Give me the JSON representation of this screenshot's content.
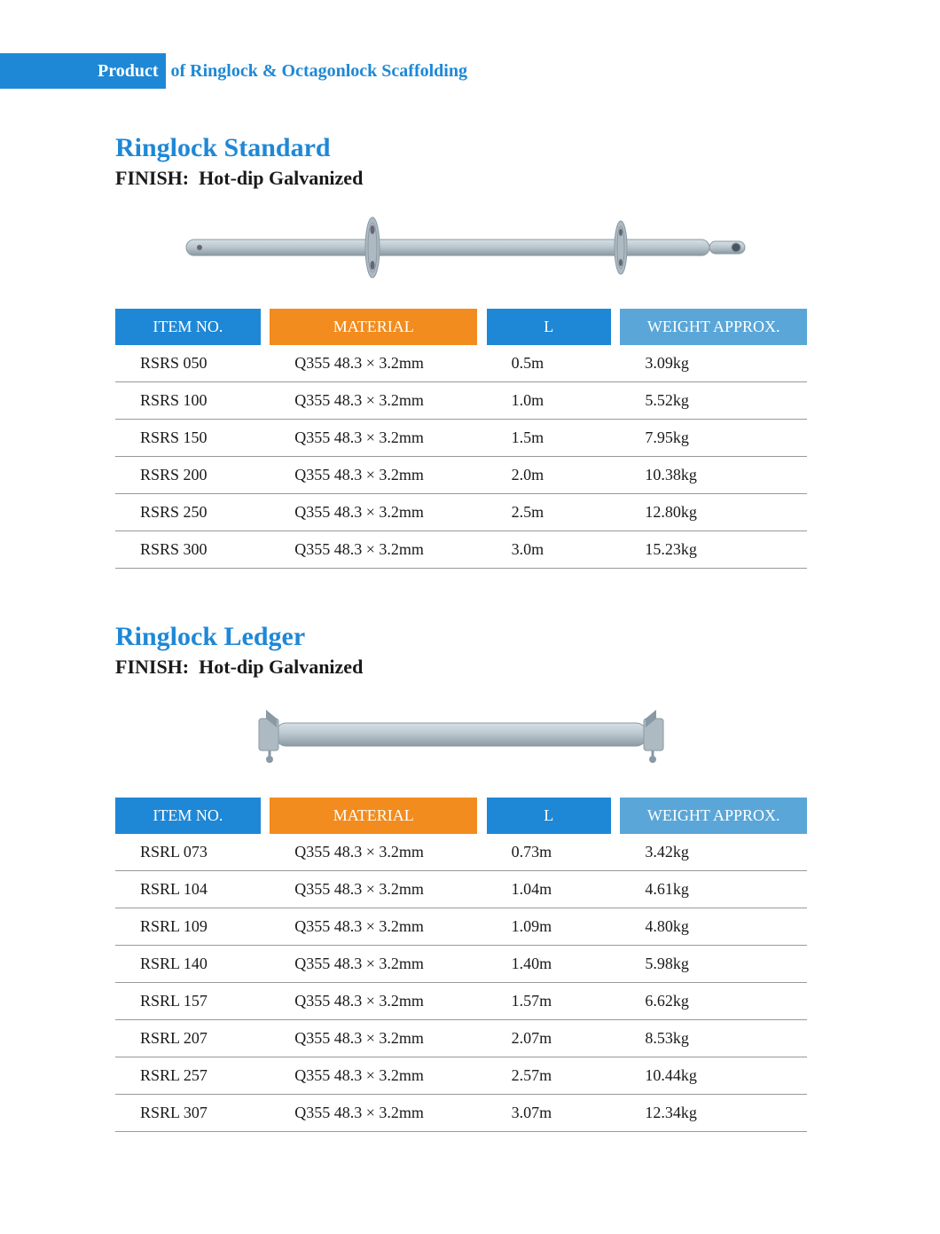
{
  "banner": {
    "left_text": "Product",
    "right_text": "of  Ringlock & Octagonlock Scaffolding",
    "left_bg": "#1e88d6",
    "left_color": "#ffffff",
    "right_color": "#1e88d6"
  },
  "table_header_colors": {
    "col1": "#1e88d6",
    "col2": "#f28c1e",
    "col3": "#1e88d6",
    "col4": "#5aa6d8"
  },
  "columns": [
    "ITEM NO.",
    "MATERIAL",
    "L",
    "WEIGHT APPROX."
  ],
  "sections": [
    {
      "title": "Ringlock Standard",
      "finish_label": "FINISH:",
      "finish_value": "Hot-dip Galvanized",
      "illustration": "standard",
      "rows": [
        {
          "item": "RSRS 050",
          "material": "Q355  48.3 × 3.2mm",
          "l": "0.5m",
          "weight": "3.09kg"
        },
        {
          "item": "RSRS 100",
          "material": "Q355  48.3 × 3.2mm",
          "l": "1.0m",
          "weight": "5.52kg"
        },
        {
          "item": "RSRS 150",
          "material": "Q355  48.3 × 3.2mm",
          "l": "1.5m",
          "weight": "7.95kg"
        },
        {
          "item": "RSRS 200",
          "material": "Q355  48.3 × 3.2mm",
          "l": "2.0m",
          "weight": "10.38kg"
        },
        {
          "item": "RSRS 250",
          "material": "Q355  48.3 × 3.2mm",
          "l": "2.5m",
          "weight": "12.80kg"
        },
        {
          "item": "RSRS 300",
          "material": "Q355  48.3 × 3.2mm",
          "l": "3.0m",
          "weight": "15.23kg"
        }
      ]
    },
    {
      "title": "Ringlock Ledger",
      "finish_label": "FINISH:",
      "finish_value": "Hot-dip Galvanized",
      "illustration": "ledger",
      "rows": [
        {
          "item": "RSRL 073",
          "material": "Q355  48.3 × 3.2mm",
          "l": "0.73m",
          "weight": "3.42kg"
        },
        {
          "item": "RSRL 104",
          "material": "Q355  48.3 × 3.2mm",
          "l": "1.04m",
          "weight": "4.61kg"
        },
        {
          "item": "RSRL 109",
          "material": "Q355  48.3 × 3.2mm",
          "l": "1.09m",
          "weight": "4.80kg"
        },
        {
          "item": "RSRL 140",
          "material": "Q355  48.3 × 3.2mm",
          "l": "1.40m",
          "weight": "5.98kg"
        },
        {
          "item": "RSRL 157",
          "material": "Q355  48.3 × 3.2mm",
          "l": "1.57m",
          "weight": "6.62kg"
        },
        {
          "item": "RSRL 207",
          "material": "Q355  48.3 × 3.2mm",
          "l": "2.07m",
          "weight": "8.53kg"
        },
        {
          "item": "RSRL 257",
          "material": "Q355  48.3 × 3.2mm",
          "l": "2.57m",
          "weight": "10.44kg"
        },
        {
          "item": "RSRL 307",
          "material": "Q355  48.3 × 3.2mm",
          "l": "3.07m",
          "weight": "12.34kg"
        }
      ]
    }
  ],
  "illustration_colors": {
    "tube_fill": "#b8c4cc",
    "tube_stroke": "#8a99a3",
    "rosette_fill": "#aebac2",
    "highlight": "#d8e0e6"
  }
}
